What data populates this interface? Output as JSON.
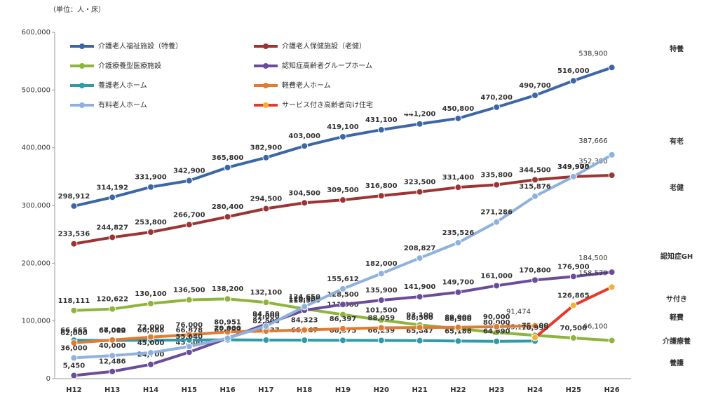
{
  "chart_data": {
    "type": "line",
    "subtitle": "（単位：人・床）",
    "categories": [
      "H12",
      "H13",
      "H14",
      "H15",
      "H16",
      "H17",
      "H18",
      "H19",
      "H20",
      "H21",
      "H22",
      "H23",
      "H24",
      "H25",
      "H26"
    ],
    "ylim": [
      0,
      600000
    ],
    "yticks": [
      0,
      {
        "value": 100000,
        "label": "100,000"
      },
      {
        "value": 200000,
        "label": "200,000"
      },
      {
        "value": 300000,
        "label": "300,000"
      },
      {
        "value": 400000,
        "label": "400,000"
      },
      {
        "value": 500000,
        "label": "500,000"
      },
      {
        "value": 600000,
        "label": "600,000"
      }
    ],
    "grid": false,
    "legend": "upper left",
    "series": [
      {
        "name": "介護老人福祉施設（特養）",
        "color": "#3c67a6",
        "values": [
          298912,
          314192,
          331900,
          342900,
          365800,
          382900,
          403000,
          419100,
          431100,
          441200,
          450800,
          470200,
          490700,
          516000,
          538900
        ],
        "value_labels": [
          "298,912",
          "314,192",
          "331,900",
          "342,900",
          "365,800",
          "382,900",
          "403,000",
          "419,100",
          "431,100",
          "441,200",
          "450,800",
          "470,200",
          "490,700",
          "516,000",
          "538,900"
        ]
      },
      {
        "name": "介護老人保健施設（老健）",
        "color": "#9c3434",
        "values": [
          233536,
          244827,
          253800,
          266700,
          280400,
          294500,
          304500,
          309500,
          316800,
          323500,
          331400,
          335800,
          344500,
          349900,
          352300
        ],
        "value_labels": [
          "233,536",
          "244,827",
          "253,800",
          "266,700",
          "280,400",
          "294,500",
          "304,500",
          "309,500",
          "316,800",
          "323,500",
          "331,400",
          "335,800",
          "344,500",
          "349,900",
          "352,300"
        ]
      },
      {
        "name": "介護療養型医療施設",
        "color": "#8db43d",
        "values": [
          118111,
          120622,
          130100,
          136500,
          138200,
          132100,
          120900,
          111000,
          101500,
          93100,
          86500,
          80000,
          75000,
          70500,
          66100
        ],
        "value_labels": [
          "118,111",
          "120,622",
          "130,100",
          "136,500",
          "138,200",
          "132,100",
          "120,900",
          "111,000",
          "101,500",
          "93,100",
          "86,500",
          "80,000",
          "75,000",
          "70,500",
          "66,100"
        ]
      },
      {
        "name": "認知症高齢者グループホーム",
        "color": "#6b4c9a",
        "values": [
          5450,
          12486,
          24700,
          45800,
          70000,
          94500,
          118500,
          128500,
          135900,
          141900,
          149700,
          161000,
          170800,
          176900,
          184500
        ],
        "value_labels": [
          "5,450",
          "12,486",
          "24,700",
          "45,800",
          "70,000",
          "94,500",
          "118,500",
          "128,500",
          "135,900",
          "141,900",
          "149,700",
          "161,000",
          "170,800",
          "176,900",
          "184,500"
        ]
      },
      {
        "name": "養護老人ホーム",
        "color": "#2f9aa8",
        "values": [
          66665,
          66012,
          66686,
          66878,
          67183,
          66837,
          66667,
          66375,
          66239,
          65847,
          65188,
          64690,
          65113,
          null,
          null
        ],
        "value_labels": [
          "66,665",
          "66,012",
          "66,686",
          "66,878",
          "67,183",
          "66,837",
          "66,667",
          "66,375",
          "66,239",
          "65,847",
          "65,188",
          "64,690",
          "65,113",
          null,
          null
        ]
      },
      {
        "name": "軽費老人ホーム",
        "color": "#e07b32",
        "values": [
          62000,
          67000,
          72000,
          76000,
          80951,
          82500,
          84323,
          86397,
          88059,
          88500,
          89000,
          90000,
          91474,
          null,
          null
        ],
        "value_labels": [
          "62,000",
          "67,000",
          "72,000",
          "76,000",
          "80,951",
          "82,500",
          "84,323",
          "86,397",
          "88,059",
          "88,500",
          "89,000",
          "90,000",
          "91,474",
          null,
          null
        ]
      },
      {
        "name": "有料老人ホーム",
        "color": "#8fb1dd",
        "values": [
          36000,
          40000,
          45000,
          55640,
          70000,
          91000,
          124650,
          155612,
          182000,
          208827,
          235526,
          271286,
          315876,
          349975,
          387666
        ],
        "value_labels": [
          "36,000",
          "40,000",
          "45,000",
          "55,640",
          "70,000",
          "91,000",
          "124,650",
          "155,612",
          "182,000",
          "208,827",
          "235,526",
          "271,286",
          "315,876",
          "349,975",
          "387,666"
        ]
      },
      {
        "name": "サービス付き高齢者向け住宅",
        "color": "#e8392b",
        "values": [
          null,
          null,
          null,
          null,
          null,
          null,
          null,
          null,
          null,
          null,
          null,
          null,
          70999,
          126865,
          158579
        ],
        "value_labels": [
          null,
          null,
          null,
          null,
          null,
          null,
          null,
          null,
          null,
          null,
          null,
          null,
          "70,999",
          "126,865",
          "158,579"
        ]
      }
    ],
    "annotations": [
      {
        "text": "特養",
        "color": "#3c67a6"
      },
      {
        "text": "有老",
        "color": "#3c67a6"
      },
      {
        "text": "老健",
        "color": "#d8304a"
      },
      {
        "text": "認知症GH",
        "color": "#6b4c9a"
      },
      {
        "text": "サ付き",
        "color": "#e8392b"
      },
      {
        "text": "軽費",
        "color": "#e07b32"
      },
      {
        "text": "介護療養",
        "color": "#5aa030"
      },
      {
        "text": "養護",
        "color": "#3aa0c8"
      }
    ]
  }
}
